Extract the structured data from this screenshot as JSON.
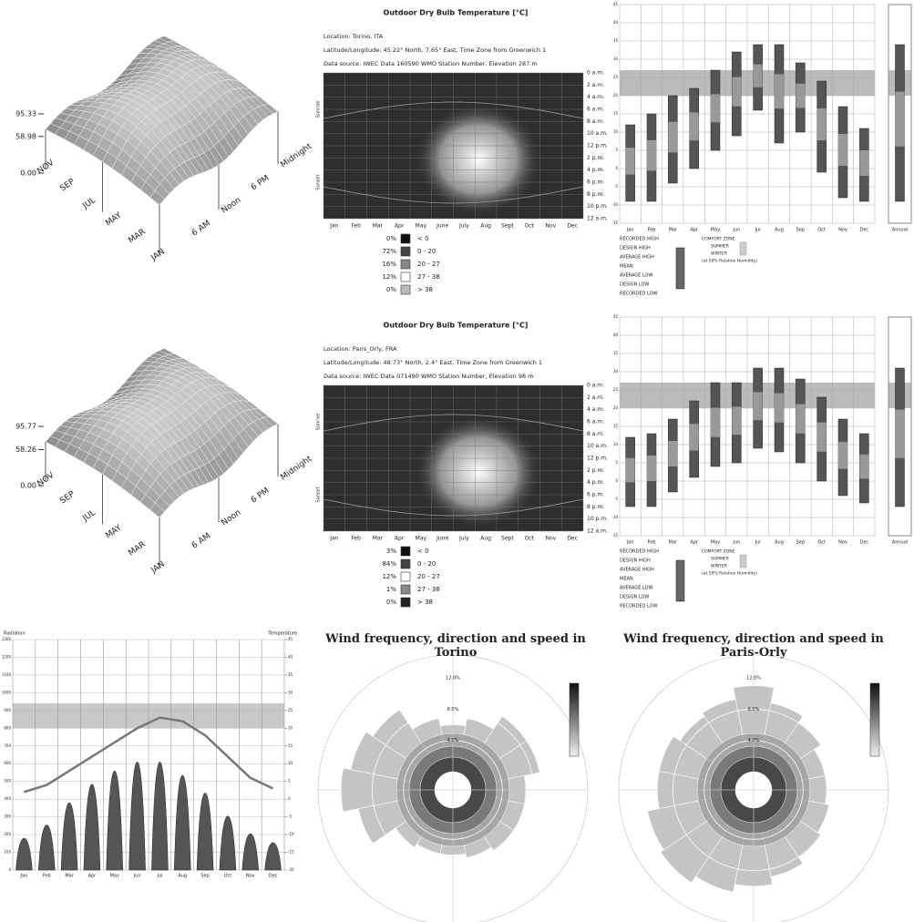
{
  "chart_data": [
    {
      "type": "surface",
      "zlim": [
        0,
        95.33
      ],
      "zticks": [
        {
          "value": 0,
          "label": "0.00"
        },
        {
          "value": 58.98,
          "label": "58.98"
        },
        95.33
      ],
      "months": [
        "JAN",
        "MAR",
        "MAY",
        "JUL",
        "SEP",
        "NOV"
      ],
      "hours": [
        "6 AM",
        "Noon",
        "6 PM",
        "Midnight"
      ]
    },
    {
      "type": "heatmap",
      "title": "Outdoor Dry Bulb Temperature [°C]",
      "location": "Location: Torino, ITA",
      "coordinates": "Latitude/Longitude: 45.22° North, 7.65° East, Time Zone from Greenwich 1",
      "source": "Data source: IWEC Data 160590 WMO Station Number, Elevation 287 m",
      "months": [
        "Jan",
        "Feb",
        "Mar",
        "Apr",
        "May",
        "June",
        "July",
        "Aug",
        "Sept",
        "Oct",
        "Nov",
        "Dec"
      ],
      "hours": [
        "0 a.m.",
        "2 a.m.",
        "4 a.m.",
        "6 a.m.",
        "8 a.m.",
        "10 a.m.",
        "12 p.m.",
        "2 p.m.",
        "4 p.m.",
        "6 p.m.",
        "8 p.m.",
        "10 p.m.",
        "12 a.m."
      ],
      "side_labels": [
        "Sunrise",
        "Sunset"
      ],
      "legend": {
        "bins": [
          "< 0",
          "0 - 20",
          "20 - 27",
          "27 - 38",
          "> 38"
        ],
        "values": [
          0,
          72,
          16,
          12,
          0
        ],
        "value_labels": [
          "0%",
          "72%",
          "16%",
          "12%",
          "0%"
        ],
        "colors": [
          "#111111",
          "#444444",
          "#888888",
          "#ffffff",
          "#bbbbbb"
        ]
      }
    },
    {
      "type": "range",
      "categories": [
        "Jan",
        "Feb",
        "Mar",
        "Apr",
        "May",
        "Jun",
        "Jul",
        "Aug",
        "Sep",
        "Oct",
        "Nov",
        "Dec"
      ],
      "low": [
        -9,
        -9,
        -4,
        0,
        5,
        9,
        16,
        7,
        10,
        -1,
        -8,
        -9
      ],
      "high": [
        12,
        15,
        20,
        22,
        27,
        32,
        34,
        34,
        29,
        24,
        17,
        11
      ],
      "annual_label": "Annual",
      "annual": [
        -9,
        34
      ],
      "comfort_zone": [
        20,
        27
      ],
      "ylim": [
        -15,
        45
      ],
      "yticks": [
        -15,
        -10,
        -5,
        0,
        5,
        10,
        15,
        20,
        25,
        30,
        35,
        40,
        45
      ],
      "legend": [
        "RECORDED HIGH",
        "DESIGN HIGH",
        "AVERAGE HIGH",
        "MEAN",
        "AVERAGE LOW",
        "DESIGN LOW",
        "RECORDED LOW"
      ],
      "comfort_legend": [
        "COMFORT ZONE",
        "SUMMER",
        "WINTER",
        "(at 50% Relative Humidity)"
      ]
    },
    {
      "type": "surface",
      "zlim": [
        0,
        95.77
      ],
      "zticks": [
        {
          "value": 0,
          "label": "0.00"
        },
        {
          "value": 58.26,
          "label": "58.26"
        },
        95.77
      ],
      "months": [
        "JAN",
        "MAR",
        "MAY",
        "JUL",
        "SEP",
        "NOV"
      ],
      "hours": [
        "6 AM",
        "Noon",
        "6 PM",
        "Midnight"
      ]
    },
    {
      "type": "heatmap",
      "title": "Outdoor Dry Bulb Temperature [°C]",
      "location": "Location: Paris_Orly, FRA",
      "coordinates": "Latitude/Longitude: 48.73° North, 2.4° East, Time Zone from Greenwich 1",
      "source": "Data source: IWEC Data 071490 WMO Station Number, Elevation 96 m",
      "months": [
        "Jan",
        "Feb",
        "Mar",
        "Apr",
        "May",
        "June",
        "July",
        "Aug",
        "Sept",
        "Oct",
        "Nov",
        "Dec"
      ],
      "hours": [
        "0 a.m.",
        "2 a.m.",
        "4 a.m.",
        "6 a.m.",
        "8 a.m.",
        "10 a.m.",
        "12 p.m.",
        "2 p.m.",
        "4 p.m.",
        "6 p.m.",
        "8 p.m.",
        "10 p.m.",
        "12 a.m."
      ],
      "side_labels": [
        "Sunrise",
        "Sunset"
      ],
      "legend": {
        "bins": [
          "< 0",
          "0 - 20",
          "20 - 27",
          "27 - 38",
          "> 38"
        ],
        "values": [
          3,
          84,
          12,
          1,
          0
        ],
        "value_labels": [
          "3%",
          "84%",
          "12%",
          "1%",
          "0%"
        ],
        "colors": [
          "#111111",
          "#444444",
          "#ffffff",
          "#888888",
          "#222222"
        ]
      }
    },
    {
      "type": "range",
      "categories": [
        "Jan",
        "Feb",
        "Mar",
        "Apr",
        "May",
        "Jun",
        "Jul",
        "Aug",
        "Sep",
        "Oct",
        "Nov",
        "Dec"
      ],
      "low": [
        -7,
        -7,
        -3,
        1,
        4,
        5,
        9,
        8,
        5,
        0,
        -4,
        -6
      ],
      "high": [
        12,
        13,
        17,
        22,
        27,
        27,
        31,
        31,
        28,
        23,
        17,
        13
      ],
      "annual_label": "Annual",
      "annual": [
        -7,
        31
      ],
      "comfort_zone": [
        20,
        27
      ],
      "ylim": [
        -15,
        45
      ],
      "yticks": [
        -15,
        -10,
        -5,
        0,
        5,
        10,
        15,
        20,
        25,
        30,
        35,
        40,
        45
      ],
      "legend": [
        "RECORDED HIGH",
        "DESIGN HIGH",
        "AVERAGE HIGH",
        "MEAN",
        "AVERAGE LOW",
        "DESIGN LOW",
        "RECORDED LOW"
      ],
      "comfort_legend": [
        "COMFORT ZONE",
        "SUMMER",
        "WINTER",
        "(at 50% Relative Humidity)"
      ]
    },
    {
      "type": "combo",
      "y_label": "Radiation",
      "y2_label": "Temperature",
      "categories": [
        "Jan",
        "Feb",
        "Mar",
        "Apr",
        "May",
        "Jun",
        "Jul",
        "Aug",
        "Sep",
        "Oct",
        "Nov",
        "Dec"
      ],
      "ylim": [
        0,
        1300
      ],
      "yticks": [
        0,
        100,
        200,
        300,
        400,
        500,
        600,
        700,
        800,
        900,
        1000,
        1100,
        1200,
        1300
      ],
      "y2lim": [
        -20,
        45
      ],
      "y2ticks": [
        -20,
        -15,
        -10,
        -5,
        0,
        5,
        10,
        15,
        20,
        25,
        30,
        35,
        40,
        45
      ],
      "comfort_zone": [
        20,
        27
      ],
      "series": [
        {
          "color": "#555555",
          "values": [
            180,
            255,
            380,
            485,
            560,
            610,
            610,
            535,
            435,
            305,
            205,
            155
          ]
        },
        {
          "color": "#777777",
          "axis": "y2",
          "values": [
            2,
            4,
            8,
            12,
            16,
            20,
            23,
            22,
            18,
            12,
            6,
            3
          ]
        }
      ]
    },
    {
      "type": "rose",
      "title": "Wind frequency, direction and speed in Torino",
      "rlim": [
        0,
        14
      ],
      "rticks": [
        {
          "value": 4,
          "label": "4.0%"
        },
        {
          "value": 8,
          "label": "8.0%"
        },
        {
          "value": 12,
          "label": "12.0%"
        }
      ],
      "values": [
        6,
        7,
        9,
        9,
        7,
        7,
        7,
        6.5,
        6,
        6,
        6.5,
        10,
        12,
        11,
        10,
        7
      ]
    },
    {
      "type": "rose",
      "title": "Wind frequency, direction and speed in Paris-Orly",
      "rlim": [
        0,
        14
      ],
      "rticks": [
        {
          "value": 4,
          "label": "4.0%"
        },
        {
          "value": 8,
          "label": "8.0%"
        },
        {
          "value": 12,
          "label": "12.0%"
        }
      ],
      "values": [
        11,
        9,
        8,
        7,
        7,
        7.5,
        8,
        9,
        10,
        11,
        12,
        11.5,
        10,
        10,
        9,
        9.5
      ]
    }
  ]
}
